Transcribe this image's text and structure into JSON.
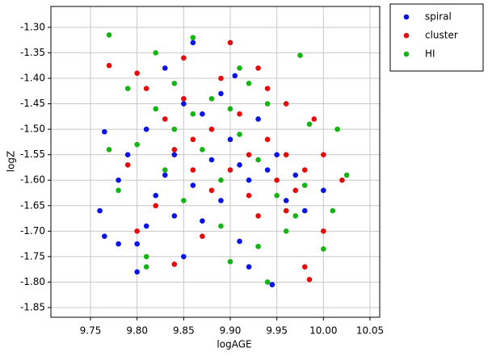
{
  "chart_data": {
    "type": "scatter",
    "xlabel": "logAGE",
    "ylabel": "logZ",
    "xlim": [
      9.7075,
      10.0604
    ],
    "ylim": [
      -1.869,
      -1.259
    ],
    "xticks": [
      9.75,
      {
        "value": 9.8,
        "label": "9.80"
      },
      9.85,
      {
        "value": 9.9,
        "label": "9.90"
      },
      9.95,
      {
        "value": 10.0,
        "label": "10.00"
      },
      10.05
    ],
    "yticks": [
      {
        "value": -1.3,
        "label": "-1.30"
      },
      -1.35,
      {
        "value": -1.4,
        "label": "-1.40"
      },
      -1.45,
      {
        "value": -1.5,
        "label": "-1.50"
      },
      -1.55,
      {
        "value": -1.6,
        "label": "-1.60"
      },
      -1.65,
      {
        "value": -1.7,
        "label": "-1.70"
      },
      -1.75,
      {
        "value": -1.8,
        "label": "-1.80"
      },
      -1.85
    ],
    "grid": true,
    "legend": "outside-top-right",
    "series": [
      {
        "name": "spiral",
        "color": "#0a14e6",
        "x": [
          9.765,
          9.765,
          9.78,
          9.8,
          9.8,
          9.85,
          9.945,
          9.92,
          9.83,
          9.905,
          9.82,
          9.86,
          9.88,
          9.9,
          9.94,
          9.96,
          9.98,
          10.0,
          9.87,
          9.85,
          9.79,
          9.78,
          9.81,
          9.84,
          9.89,
          9.92,
          9.95,
          9.93,
          9.81,
          9.84,
          9.87,
          9.91,
          9.97,
          9.76,
          9.86,
          9.89,
          9.83,
          9.91
        ],
        "y": [
          -1.505,
          -1.71,
          -1.725,
          -1.78,
          -1.725,
          -1.75,
          -1.805,
          -1.77,
          -1.38,
          -1.395,
          -1.63,
          -1.61,
          -1.56,
          -1.52,
          -1.58,
          -1.64,
          -1.66,
          -1.62,
          -1.47,
          -1.45,
          -1.55,
          -1.6,
          -1.69,
          -1.67,
          -1.64,
          -1.6,
          -1.55,
          -1.48,
          -1.5,
          -1.55,
          -1.68,
          -1.72,
          -1.59,
          -1.66,
          -1.33,
          -1.43,
          -1.59,
          -1.57
        ]
      },
      {
        "name": "cluster",
        "color": "#e60a0a",
        "x": [
          9.77,
          9.8,
          9.84,
          9.985,
          9.98,
          9.85,
          9.9,
          9.93,
          9.96,
          9.99,
          10.0,
          10.02,
          9.95,
          9.92,
          9.9,
          9.88,
          9.86,
          9.83,
          9.81,
          9.79,
          9.8,
          9.82,
          9.87,
          9.93,
          9.97,
          10.0,
          9.96,
          9.94,
          9.91,
          9.89,
          9.86,
          9.84,
          9.96,
          9.98,
          9.92,
          9.88,
          9.85,
          9.94
        ],
        "y": [
          -1.375,
          -1.39,
          -1.765,
          -1.795,
          -1.77,
          -1.36,
          -1.33,
          -1.38,
          -1.45,
          -1.48,
          -1.55,
          -1.6,
          -1.6,
          -1.55,
          -1.58,
          -1.62,
          -1.52,
          -1.48,
          -1.42,
          -1.57,
          -1.7,
          -1.65,
          -1.71,
          -1.67,
          -1.62,
          -1.7,
          -1.55,
          -1.52,
          -1.47,
          -1.4,
          -1.58,
          -1.54,
          -1.66,
          -1.58,
          -1.63,
          -1.5,
          -1.44,
          -1.42
        ]
      },
      {
        "name": "HI",
        "color": "#14b414",
        "x": [
          9.77,
          9.975,
          9.79,
          9.81,
          9.81,
          9.94,
          10.0,
          10.025,
          10.015,
          9.985,
          9.9,
          9.88,
          9.86,
          9.84,
          9.82,
          9.8,
          9.78,
          9.83,
          9.87,
          9.91,
          9.93,
          9.95,
          9.97,
          10.01,
          9.96,
          9.93,
          9.89,
          9.85,
          9.82,
          9.86,
          9.92,
          9.94,
          9.89,
          9.77,
          9.84,
          9.91,
          9.98,
          9.9
        ],
        "y": [
          -1.315,
          -1.355,
          -1.42,
          -1.75,
          -1.77,
          -1.8,
          -1.735,
          -1.59,
          -1.5,
          -1.49,
          -1.46,
          -1.44,
          -1.47,
          -1.5,
          -1.46,
          -1.53,
          -1.62,
          -1.58,
          -1.54,
          -1.51,
          -1.56,
          -1.63,
          -1.67,
          -1.66,
          -1.7,
          -1.73,
          -1.69,
          -1.64,
          -1.35,
          -1.32,
          -1.41,
          -1.45,
          -1.6,
          -1.54,
          -1.41,
          -1.38,
          -1.61,
          -1.76
        ]
      }
    ]
  }
}
